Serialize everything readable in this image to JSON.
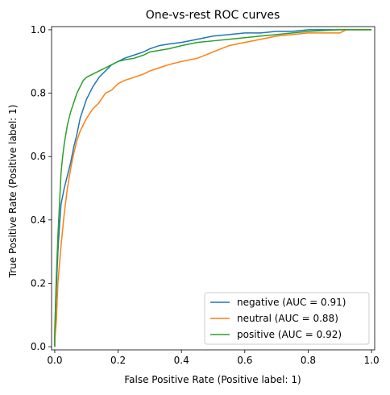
{
  "chart_data": {
    "type": "line",
    "title": "One-vs-rest ROC curves",
    "xlabel": "False Positive Rate (Positive label: 1)",
    "ylabel": "True Positive Rate (Positive label: 1)",
    "xlim": [
      0,
      1
    ],
    "ylim": [
      0,
      1
    ],
    "xticks": [
      0.0,
      0.2,
      0.4,
      0.6,
      0.8,
      1.0
    ],
    "yticks": [
      0.0,
      0.2,
      0.4,
      0.6,
      0.8,
      1.0
    ],
    "xtick_labels": [
      "0.0",
      "0.2",
      "0.4",
      "0.6",
      "0.8",
      "1.0"
    ],
    "ytick_labels": [
      "0.0",
      "0.2",
      "0.4",
      "0.6",
      "0.8",
      "1.0"
    ],
    "grid": false,
    "legend_position": "lower-right",
    "series": [
      {
        "name": "negative (AUC = 0.91)",
        "color": "#1f77b4",
        "x": [
          0,
          0,
          0.005,
          0.01,
          0.015,
          0.02,
          0.03,
          0.04,
          0.05,
          0.06,
          0.07,
          0.08,
          0.1,
          0.12,
          0.14,
          0.16,
          0.18,
          0.2,
          0.22,
          0.25,
          0.28,
          0.3,
          0.33,
          0.36,
          0.4,
          0.45,
          0.5,
          0.55,
          0.6,
          0.65,
          0.7,
          0.75,
          0.8,
          0.85,
          0.9,
          0.95,
          1.0
        ],
        "y": [
          0,
          0.03,
          0.18,
          0.3,
          0.38,
          0.45,
          0.5,
          0.54,
          0.58,
          0.63,
          0.67,
          0.72,
          0.78,
          0.82,
          0.85,
          0.87,
          0.89,
          0.9,
          0.91,
          0.92,
          0.93,
          0.94,
          0.95,
          0.955,
          0.96,
          0.97,
          0.98,
          0.985,
          0.99,
          0.99,
          0.995,
          0.995,
          1.0,
          1.0,
          1.0,
          1.0,
          1.0
        ]
      },
      {
        "name": "neutral (AUC = 0.88)",
        "color": "#ff7f0e",
        "x": [
          0,
          0,
          0.005,
          0.01,
          0.02,
          0.03,
          0.04,
          0.05,
          0.06,
          0.07,
          0.08,
          0.09,
          0.1,
          0.12,
          0.14,
          0.16,
          0.18,
          0.2,
          0.22,
          0.25,
          0.28,
          0.3,
          0.33,
          0.36,
          0.4,
          0.45,
          0.5,
          0.55,
          0.6,
          0.65,
          0.7,
          0.75,
          0.8,
          0.85,
          0.9,
          0.92,
          1.0
        ],
        "y": [
          0,
          0.02,
          0.08,
          0.2,
          0.32,
          0.42,
          0.5,
          0.56,
          0.61,
          0.65,
          0.68,
          0.7,
          0.72,
          0.75,
          0.77,
          0.8,
          0.81,
          0.83,
          0.84,
          0.85,
          0.86,
          0.87,
          0.88,
          0.89,
          0.9,
          0.91,
          0.93,
          0.95,
          0.96,
          0.97,
          0.98,
          0.985,
          0.99,
          0.99,
          0.99,
          1.0,
          1.0
        ]
      },
      {
        "name": "positive (AUC = 0.92)",
        "color": "#2ca02c",
        "x": [
          0,
          0,
          0.005,
          0.01,
          0.015,
          0.02,
          0.025,
          0.03,
          0.04,
          0.05,
          0.06,
          0.07,
          0.08,
          0.09,
          0.1,
          0.12,
          0.14,
          0.16,
          0.18,
          0.2,
          0.22,
          0.25,
          0.28,
          0.3,
          0.33,
          0.36,
          0.4,
          0.45,
          0.5,
          0.55,
          0.6,
          0.65,
          0.7,
          0.75,
          0.8,
          0.9,
          1.0
        ],
        "y": [
          0,
          0.05,
          0.22,
          0.35,
          0.45,
          0.55,
          0.6,
          0.64,
          0.7,
          0.74,
          0.77,
          0.8,
          0.82,
          0.84,
          0.85,
          0.86,
          0.87,
          0.88,
          0.89,
          0.9,
          0.905,
          0.91,
          0.92,
          0.93,
          0.935,
          0.94,
          0.95,
          0.96,
          0.965,
          0.97,
          0.975,
          0.98,
          0.985,
          0.99,
          0.995,
          1.0,
          1.0
        ]
      }
    ]
  }
}
